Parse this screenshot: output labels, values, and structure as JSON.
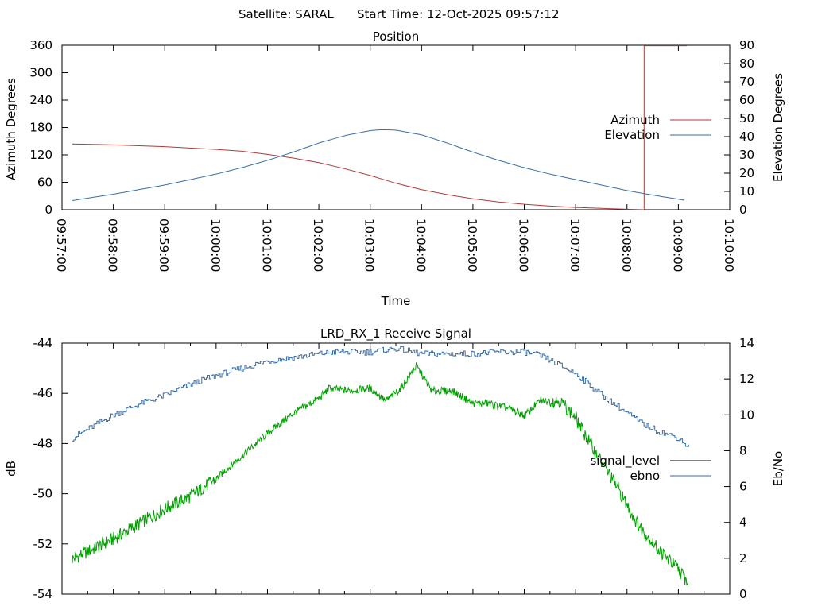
{
  "header": {
    "satellite_label": "Satellite: SARAL",
    "start_time_label": "Start Time: 12-Oct-2025 09:57:12"
  },
  "colors": {
    "azimuth": "#b03a3a",
    "elevation": "#3a6ea5",
    "signal_level": "#000000",
    "ebno": "#3a6ea5",
    "signal_trace": "#00a000",
    "axis": "#000000",
    "background": "#ffffff"
  },
  "chart_data": [
    {
      "type": "line",
      "title": "Position",
      "xlabel": "Time",
      "ylabel": "Azimuth Degrees",
      "y2label": "Elevation Degrees",
      "xlim": [
        "09:57:00",
        "10:10:00"
      ],
      "ylim": [
        0,
        360
      ],
      "y2lim": [
        0,
        90
      ],
      "x_ticks": [
        "09:57:00",
        "09:58:00",
        "09:59:00",
        "10:00:00",
        "10:01:00",
        "10:02:00",
        "10:03:00",
        "10:04:00",
        "10:05:00",
        "10:06:00",
        "10:07:00",
        "10:08:00",
        "10:09:00",
        "10:10:00"
      ],
      "y_ticks": [
        "0",
        "60",
        "120",
        "180",
        "240",
        "300",
        "360"
      ],
      "y2_ticks": [
        "0",
        "10",
        "20",
        "30",
        "40",
        "50",
        "60",
        "70",
        "80",
        "90"
      ],
      "legend_position": "right",
      "grid": false,
      "series": [
        {
          "name": "Azimuth",
          "axis": "y",
          "x": [
            "09:57:12",
            "09:58:00",
            "09:59:00",
            "10:00:00",
            "10:00:30",
            "10:01:00",
            "10:01:30",
            "10:02:00",
            "10:02:30",
            "10:03:00",
            "10:03:30",
            "10:04:00",
            "10:04:30",
            "10:05:00",
            "10:05:30",
            "10:06:00",
            "10:06:30",
            "10:07:00",
            "10:07:30",
            "10:08:00",
            "10:08:20",
            "10:08:20",
            "10:09:10"
          ],
          "values": [
            144,
            142,
            138,
            132,
            128,
            121,
            113,
            103,
            90,
            75,
            58,
            44,
            33,
            24,
            17,
            12,
            8,
            5,
            3,
            1,
            0,
            359,
            359
          ]
        },
        {
          "name": "Elevation",
          "axis": "y2",
          "x": [
            "09:57:12",
            "09:58:00",
            "09:59:00",
            "10:00:00",
            "10:00:30",
            "10:01:00",
            "10:01:30",
            "10:02:00",
            "10:02:30",
            "10:03:00",
            "10:03:15",
            "10:03:30",
            "10:04:00",
            "10:04:30",
            "10:05:00",
            "10:05:30",
            "10:06:00",
            "10:06:30",
            "10:07:00",
            "10:07:30",
            "10:08:00",
            "10:08:30",
            "10:09:10"
          ],
          "values": [
            5,
            8.5,
            13.5,
            19.5,
            23,
            27,
            31.5,
            36.5,
            40.5,
            43.3,
            43.8,
            43.5,
            41,
            36.5,
            31.5,
            27,
            23,
            19.5,
            16.5,
            13.5,
            10.5,
            8,
            5
          ]
        }
      ]
    },
    {
      "type": "line",
      "title": "LRD_RX_1 Receive Signal",
      "ylabel": "dB",
      "y2label": "Eb/No",
      "ylim": [
        -54,
        -44
      ],
      "y2lim": [
        0,
        14
      ],
      "y_ticks": [
        "-44",
        "-46",
        "-48",
        "-50",
        "-52",
        "-54"
      ],
      "y2_ticks": [
        "0",
        "2",
        "4",
        "6",
        "8",
        "10",
        "12",
        "14"
      ],
      "legend_position": "right",
      "grid": false,
      "x_range_minutes": [
        0,
        13
      ],
      "series": [
        {
          "name": "signal_level",
          "axis": "y",
          "x_minutes": [
            0.2,
            0.5,
            1.0,
            1.5,
            2.0,
            2.5,
            3.0,
            3.5,
            4.0,
            4.5,
            5.0,
            5.2,
            5.6,
            6.0,
            6.3,
            6.6,
            6.9,
            7.2,
            7.6,
            8.0,
            8.3,
            8.7,
            9.0,
            9.3,
            9.7,
            10.0,
            10.4,
            10.8,
            11.2,
            11.6,
            12.0,
            12.2
          ],
          "values": [
            -52.6,
            -52.3,
            -51.8,
            -51.2,
            -50.6,
            -50.1,
            -49.4,
            -48.5,
            -47.6,
            -46.8,
            -46.2,
            -45.8,
            -45.9,
            -45.8,
            -46.3,
            -45.8,
            -44.9,
            -45.9,
            -45.9,
            -46.4,
            -46.4,
            -46.6,
            -46.9,
            -46.3,
            -46.3,
            -47.0,
            -48.4,
            -49.7,
            -51.2,
            -52.2,
            -53.0,
            -53.6
          ]
        },
        {
          "name": "ebno",
          "axis": "y2",
          "x_minutes": [
            0.2,
            0.5,
            1.0,
            1.5,
            2.0,
            2.5,
            3.0,
            3.5,
            4.0,
            4.5,
            5.0,
            5.3,
            5.6,
            6.0,
            6.5,
            7.0,
            7.5,
            8.0,
            8.5,
            9.0,
            9.3,
            9.6,
            10.0,
            10.3,
            10.6,
            11.0,
            11.3,
            11.6,
            12.0,
            12.2
          ],
          "values": [
            8.7,
            9.2,
            10.0,
            10.6,
            11.1,
            11.7,
            12.2,
            12.6,
            13.0,
            13.2,
            13.4,
            13.5,
            13.5,
            13.5,
            13.7,
            13.4,
            13.4,
            13.4,
            13.5,
            13.5,
            13.3,
            12.9,
            12.3,
            11.6,
            10.9,
            10.1,
            9.5,
            9.1,
            8.7,
            8.2
          ]
        }
      ]
    }
  ]
}
